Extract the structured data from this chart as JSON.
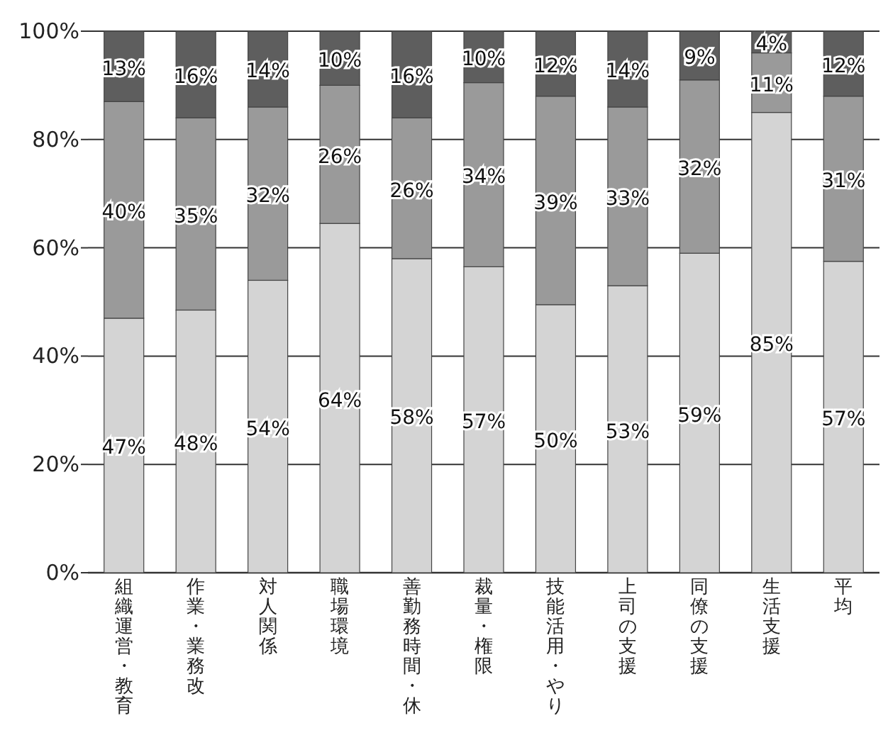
{
  "chart_data": {
    "type": "bar",
    "stacked": true,
    "categories": [
      "組織運営・教育",
      "作業・業務改",
      "対人関係",
      "職場環境",
      "善勤務時間・休",
      "裁量・権限",
      "技能活用・やり",
      "上司の支援",
      "同僚の支援",
      "生活支援",
      "平均"
    ],
    "series": [
      {
        "color": "#d4d4d4",
        "values": [
          47,
          48.5,
          54,
          64.5,
          58,
          56.5,
          49.5,
          53,
          59,
          85,
          57.5
        ],
        "value_labels": [
          "47%",
          "48%",
          "54%",
          "64%",
          "58%",
          "57%",
          "50%",
          "53%",
          "59%",
          "85%",
          "57%"
        ]
      },
      {
        "color": "#9a9a9a",
        "values": [
          40,
          35.5,
          32,
          25.5,
          26,
          34,
          38.5,
          33,
          32,
          11,
          30.5
        ],
        "value_labels": [
          "40%",
          "35%",
          "32%",
          "26%",
          "26%",
          "34%",
          "39%",
          "33%",
          "32%",
          "11%",
          "31%"
        ]
      },
      {
        "color": "#5e5e5e",
        "values": [
          13,
          16,
          14,
          10,
          16,
          9.5,
          12,
          14,
          9,
          4,
          12
        ],
        "value_labels": [
          "13%",
          "16%",
          "14%",
          "10%",
          "16%",
          "10%",
          "12%",
          "14%",
          "9%",
          "4%",
          "12%"
        ]
      }
    ],
    "ylim": [
      0,
      100
    ],
    "yticks": [
      {
        "value": 0,
        "label": "0%"
      },
      {
        "value": 20,
        "label": "20%"
      },
      {
        "value": 40,
        "label": "40%"
      },
      {
        "value": 60,
        "label": "60%"
      },
      {
        "value": 80,
        "label": "80%"
      },
      {
        "value": 100,
        "label": "100%"
      }
    ],
    "grid": "y"
  }
}
